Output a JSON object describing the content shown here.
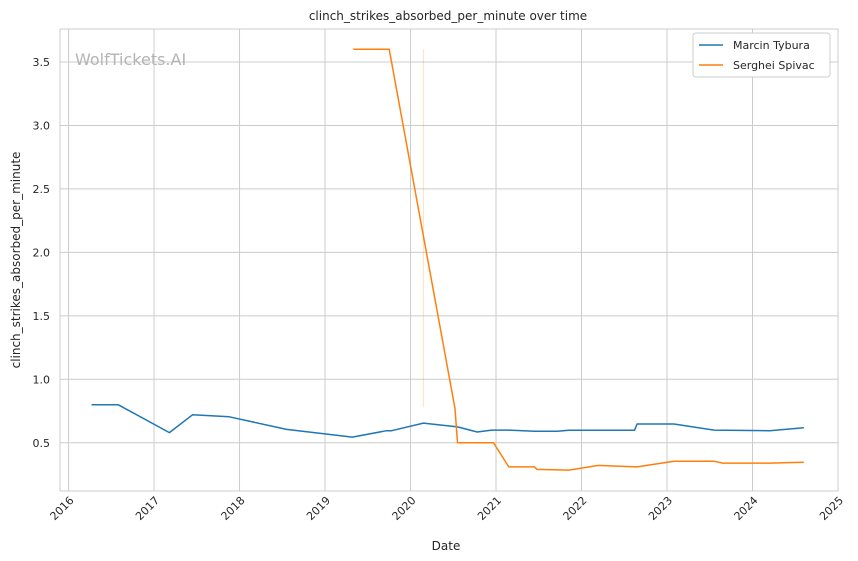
{
  "chart_data": {
    "type": "line",
    "title": "clinch_strikes_absorbed_per_minute over time",
    "xlabel": "Date",
    "ylabel": "clinch_strikes_absorbed_per_minute",
    "watermark": "WolfTickets.AI",
    "xlim": [
      2015.9,
      2025.0
    ],
    "ylim": [
      0.12,
      3.76
    ],
    "x_ticks": [
      2016,
      2017,
      2018,
      2019,
      2020,
      2021,
      2022,
      2023,
      2024,
      2025
    ],
    "x_tick_labels": [
      "2016",
      "2017",
      "2018",
      "2019",
      "2020",
      "2021",
      "2022",
      "2023",
      "2024",
      "2025"
    ],
    "y_ticks": [
      0.5,
      1.0,
      1.5,
      2.0,
      2.5,
      3.0,
      3.5
    ],
    "y_tick_labels": [
      "0.5",
      "1.0",
      "1.5",
      "2.0",
      "2.5",
      "3.0",
      "3.5"
    ],
    "grid": true,
    "legend_position": "top-right",
    "series": [
      {
        "name": "Marcin Tybura",
        "color": "#1f77b4",
        "points": [
          [
            2016.27,
            0.8
          ],
          [
            2016.58,
            0.8
          ],
          [
            2017.18,
            0.58
          ],
          [
            2017.45,
            0.72
          ],
          [
            2017.88,
            0.705
          ],
          [
            2018.55,
            0.605
          ],
          [
            2019.32,
            0.545
          ],
          [
            2019.72,
            0.595
          ],
          [
            2019.78,
            0.595
          ],
          [
            2020.15,
            0.655
          ],
          [
            2020.55,
            0.625
          ],
          [
            2020.78,
            0.585
          ],
          [
            2020.95,
            0.6
          ],
          [
            2021.15,
            0.6
          ],
          [
            2021.45,
            0.59
          ],
          [
            2021.72,
            0.59
          ],
          [
            2021.85,
            0.598
          ],
          [
            2022.62,
            0.598
          ],
          [
            2022.65,
            0.648
          ],
          [
            2023.08,
            0.648
          ],
          [
            2023.55,
            0.6
          ],
          [
            2024.2,
            0.595
          ],
          [
            2024.6,
            0.618
          ]
        ]
      },
      {
        "name": "Serghei Spivac",
        "color": "#ff7f0e",
        "points": [
          [
            2019.33,
            3.6
          ],
          [
            2019.75,
            3.6
          ],
          [
            2020.52,
            0.77
          ],
          [
            2020.55,
            0.5
          ],
          [
            2020.97,
            0.5
          ],
          [
            2021.15,
            0.31
          ],
          [
            2021.45,
            0.31
          ],
          [
            2021.48,
            0.29
          ],
          [
            2021.85,
            0.285
          ],
          [
            2022.2,
            0.322
          ],
          [
            2022.65,
            0.31
          ],
          [
            2023.08,
            0.355
          ],
          [
            2023.55,
            0.355
          ],
          [
            2023.65,
            0.34
          ],
          [
            2024.2,
            0.34
          ],
          [
            2024.6,
            0.347
          ]
        ],
        "faint_vertical_line": {
          "x": 2020.15,
          "y_from": 0.78,
          "y_to": 3.6
        }
      }
    ]
  }
}
